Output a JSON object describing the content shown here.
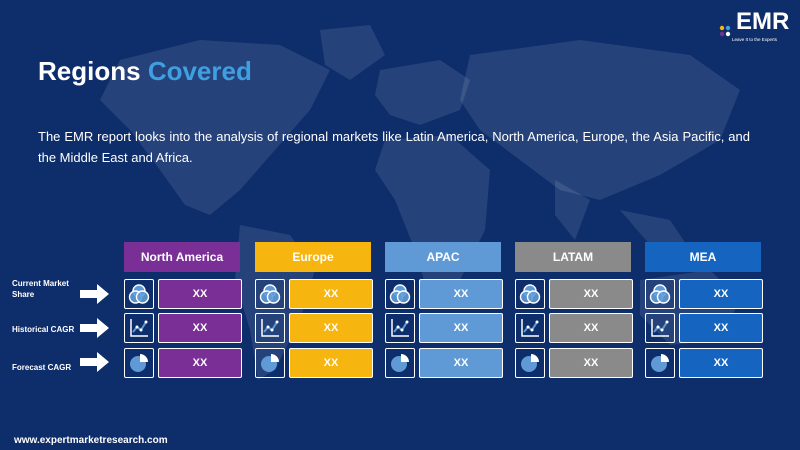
{
  "colors": {
    "background": "#0e2d6b",
    "title_accent": "#3f9fe0",
    "north_america": "#7a2f96",
    "europe": "#f7b50f",
    "apac": "#5f9ad6",
    "latam": "#8a8a8a",
    "mea": "#1565c0"
  },
  "logo": {
    "text": "EMR",
    "tagline": "Leave It to the Experts"
  },
  "title": {
    "part1": "Regions",
    "part2": "Covered"
  },
  "description": "The EMR report looks into the analysis of regional markets like Latin America, North America, Europe, the Asia Pacific, and the Middle East and Africa.",
  "table": {
    "row_labels": [
      "Current Market Share",
      "Historical CAGR",
      "Forecast CAGR"
    ],
    "row_icons": [
      "venn-diagram-icon",
      "line-chart-icon",
      "pie-chart-icon"
    ],
    "regions": [
      {
        "name": "North America",
        "values": [
          "XX",
          "XX",
          "XX"
        ]
      },
      {
        "name": "Europe",
        "values": [
          "XX",
          "XX",
          "XX"
        ]
      },
      {
        "name": "APAC",
        "values": [
          "XX",
          "XX",
          "XX"
        ]
      },
      {
        "name": "LATAM",
        "values": [
          "XX",
          "XX",
          "XX"
        ]
      },
      {
        "name": "MEA",
        "values": [
          "XX",
          "XX",
          "XX"
        ]
      }
    ]
  },
  "footer": "www.expertmarketresearch.com"
}
